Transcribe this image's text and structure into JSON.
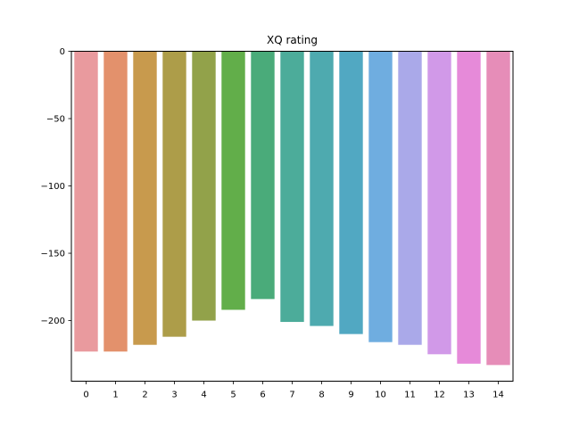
{
  "chart_data": {
    "type": "bar",
    "title": "XQ rating",
    "xlabel": "",
    "ylabel": "",
    "categories": [
      "0",
      "1",
      "2",
      "3",
      "4",
      "5",
      "6",
      "7",
      "8",
      "9",
      "10",
      "11",
      "12",
      "13",
      "14"
    ],
    "values": [
      -223,
      -223,
      -218,
      -212,
      -200,
      -192,
      -184,
      -201,
      -204,
      -210,
      -216,
      -218,
      -225,
      -232,
      -233
    ],
    "ylim": [
      -245,
      0
    ],
    "yticks": [
      0,
      -50,
      -100,
      -150,
      -200
    ],
    "ytick_labels": [
      "0",
      "−50",
      "−100",
      "−150",
      "−200"
    ],
    "colors": [
      "#e99a9e",
      "#e3916c",
      "#c89a4d",
      "#ad9d49",
      "#92a24a",
      "#62ae4a",
      "#4aab7a",
      "#4cac9a",
      "#4eaaaf",
      "#51a8c2",
      "#6fade0",
      "#aaa9e9",
      "#d199e8",
      "#e68ad9",
      "#e68db8"
    ],
    "grid": false,
    "legend": "none"
  }
}
